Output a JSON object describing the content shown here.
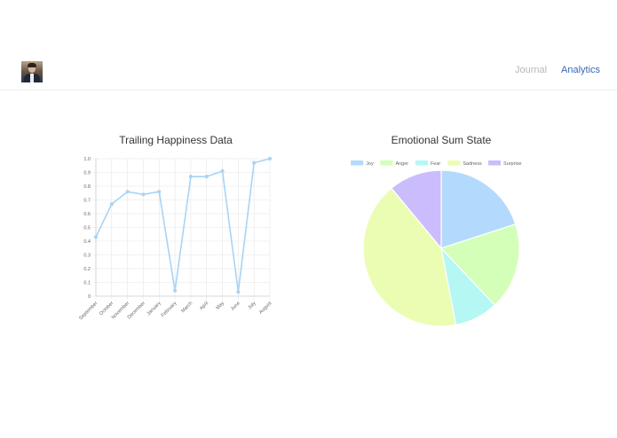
{
  "nav": {
    "journal_label": "Journal",
    "analytics_label": "Analytics"
  },
  "charts": {
    "happiness_title": "Trailing Happiness Data",
    "emotion_title": "Emotional Sum State"
  },
  "colors": {
    "line": "#a8d4f5",
    "grid": "#e6e6e6",
    "nav_active": "#3867b8",
    "nav_inactive": "#b8b8b8"
  },
  "chart_data": [
    {
      "type": "line",
      "title": "Trailing Happiness Data",
      "categories": [
        "September",
        "October",
        "November",
        "December",
        "January",
        "February",
        "March",
        "April",
        "May",
        "June",
        "July",
        "August"
      ],
      "series": [
        {
          "values": [
            0.43,
            0.67,
            0.76,
            0.74,
            0.76,
            0.04,
            0.87,
            0.87,
            0.91,
            0.03,
            0.97,
            1.0
          ]
        }
      ],
      "yticks": [
        "0",
        "0.1",
        "0.2",
        "0.3",
        "0.4",
        "0.5",
        "0.6",
        "0.7",
        "0.8",
        "0.9",
        "1.0"
      ],
      "ylim": [
        0,
        1.0
      ],
      "grid": true
    },
    {
      "type": "pie",
      "title": "Emotional Sum State",
      "legend_position": "top",
      "labels": [
        "Joy",
        "Anger",
        "Fear",
        "Sadness",
        "Surprise"
      ],
      "values": [
        20,
        18,
        9,
        42,
        11
      ],
      "colors": [
        "#b3dafd",
        "#d3ffb9",
        "#b5f8f3",
        "#ebfdb3",
        "#cbbcfd"
      ]
    }
  ]
}
